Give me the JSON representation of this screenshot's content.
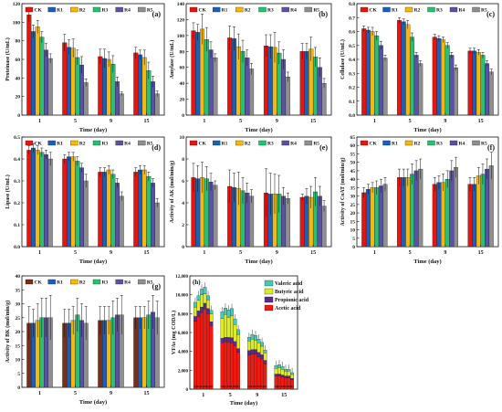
{
  "colors": {
    "CK": "#e8150f",
    "R1": "#1c5fb8",
    "R2": "#f5b811",
    "R3": "#2bbf74",
    "R4": "#5a52a6",
    "R5": "#8f8f8f",
    "CK_g": "#7a2f18",
    "acetic": "#8a2a1c",
    "propionic": "#5a2b8c",
    "butyric": "#dcea2a",
    "valeric": "#47c8b8",
    "stackbar": "#ee1b12"
  },
  "legend_labels": [
    "CK",
    "R1",
    "R2",
    "R3",
    "R4",
    "R5"
  ],
  "chart_data": [
    {
      "id": "a",
      "type": "bar",
      "panel_label": "(a)",
      "ylabel": "Proteinase (U/mL)",
      "xlabel": "Time (day)",
      "categories": [
        "1",
        "5",
        "9",
        "15"
      ],
      "ylim": [
        0,
        120
      ],
      "yticks": [
        0,
        20,
        40,
        60,
        80,
        100,
        120
      ],
      "series": [
        {
          "name": "CK",
          "values": [
            108,
            78,
            63,
            67
          ],
          "err": [
            8,
            9,
            8,
            6
          ]
        },
        {
          "name": "R1",
          "values": [
            90,
            73,
            61,
            65
          ],
          "err": [
            7,
            8,
            10,
            5
          ]
        },
        {
          "name": "R2",
          "values": [
            95,
            72,
            60,
            62
          ],
          "err": [
            7,
            10,
            8,
            8
          ]
        },
        {
          "name": "R3",
          "values": [
            84,
            62,
            55,
            48
          ],
          "err": [
            6,
            8,
            9,
            9
          ]
        },
        {
          "name": "R4",
          "values": [
            70,
            54,
            36,
            36
          ],
          "err": [
            7,
            9,
            5,
            6
          ]
        },
        {
          "name": "R5",
          "values": [
            61,
            35,
            23,
            23
          ],
          "err": [
            5,
            4,
            2,
            3
          ]
        }
      ]
    },
    {
      "id": "b",
      "type": "bar",
      "panel_label": "(b)",
      "ylabel": "Amylase (U/mL)",
      "xlabel": "Time (day)",
      "categories": [
        "1",
        "5",
        "9",
        "15"
      ],
      "ylim": [
        0,
        140
      ],
      "yticks": [
        0,
        20,
        40,
        60,
        80,
        100,
        120,
        140
      ],
      "series": [
        {
          "name": "CK",
          "values": [
            106,
            97,
            87,
            80
          ],
          "err": [
            10,
            15,
            14,
            10
          ]
        },
        {
          "name": "R1",
          "values": [
            104,
            96,
            86,
            80
          ],
          "err": [
            10,
            15,
            15,
            10
          ]
        },
        {
          "name": "R2",
          "values": [
            108,
            86,
            85,
            83
          ],
          "err": [
            19,
            16,
            19,
            15
          ]
        },
        {
          "name": "R3",
          "values": [
            95,
            80,
            78,
            73
          ],
          "err": [
            15,
            14,
            14,
            12
          ]
        },
        {
          "name": "R4",
          "values": [
            82,
            72,
            70,
            60
          ],
          "err": [
            10,
            10,
            12,
            12
          ]
        },
        {
          "name": "R5",
          "values": [
            72,
            58,
            48,
            40
          ],
          "err": [
            5,
            7,
            6,
            6
          ]
        }
      ]
    },
    {
      "id": "c",
      "type": "bar",
      "panel_label": "(c)",
      "ylabel": "Cellulase (U/mL)",
      "xlabel": "Time (day)",
      "categories": [
        "1",
        "5",
        "9",
        "15"
      ],
      "ylim": [
        0,
        0.8
      ],
      "yticks": [
        0.0,
        0.1,
        0.2,
        0.3,
        0.4,
        0.5,
        0.6,
        0.7,
        0.8
      ],
      "series": [
        {
          "name": "CK",
          "values": [
            0.62,
            0.68,
            0.56,
            0.46
          ],
          "err": [
            0.02,
            0.02,
            0.02,
            0.02
          ]
        },
        {
          "name": "R1",
          "values": [
            0.61,
            0.67,
            0.55,
            0.46
          ],
          "err": [
            0.02,
            0.02,
            0.02,
            0.02
          ]
        },
        {
          "name": "R2",
          "values": [
            0.6,
            0.65,
            0.54,
            0.45
          ],
          "err": [
            0.03,
            0.03,
            0.02,
            0.02
          ]
        },
        {
          "name": "R3",
          "values": [
            0.57,
            0.56,
            0.5,
            0.43
          ],
          "err": [
            0.03,
            0.03,
            0.02,
            0.02
          ]
        },
        {
          "name": "R4",
          "values": [
            0.5,
            0.43,
            0.43,
            0.37
          ],
          "err": [
            0.03,
            0.02,
            0.02,
            0.02
          ]
        },
        {
          "name": "R5",
          "values": [
            0.41,
            0.37,
            0.34,
            0.31
          ],
          "err": [
            0.02,
            0.02,
            0.02,
            0.02
          ]
        }
      ]
    },
    {
      "id": "d",
      "type": "bar",
      "panel_label": "(d)",
      "ylabel": "Lipase (U/mL)",
      "xlabel": "Time (day)",
      "categories": [
        "1",
        "5",
        "9",
        "15"
      ],
      "ylim": [
        0,
        0.5
      ],
      "yticks": [
        0.0,
        0.1,
        0.2,
        0.3,
        0.4,
        0.5
      ],
      "series": [
        {
          "name": "CK",
          "values": [
            0.44,
            0.4,
            0.34,
            0.34
          ],
          "err": [
            0.02,
            0.02,
            0.02,
            0.02
          ]
        },
        {
          "name": "R1",
          "values": [
            0.45,
            0.41,
            0.34,
            0.35
          ],
          "err": [
            0.02,
            0.02,
            0.02,
            0.02
          ]
        },
        {
          "name": "R2",
          "values": [
            0.44,
            0.41,
            0.35,
            0.35
          ],
          "err": [
            0.02,
            0.02,
            0.02,
            0.02
          ]
        },
        {
          "name": "R3",
          "values": [
            0.43,
            0.39,
            0.33,
            0.32
          ],
          "err": [
            0.02,
            0.02,
            0.02,
            0.02
          ]
        },
        {
          "name": "R4",
          "values": [
            0.42,
            0.36,
            0.29,
            0.29
          ],
          "err": [
            0.02,
            0.02,
            0.02,
            0.02
          ]
        },
        {
          "name": "R5",
          "values": [
            0.4,
            0.3,
            0.23,
            0.2
          ],
          "err": [
            0.03,
            0.03,
            0.02,
            0.02
          ]
        }
      ]
    },
    {
      "id": "e",
      "type": "bar",
      "panel_label": "(e)",
      "ylabel": "Activity of AK (mol/min/g)",
      "xlabel": "Time (day)",
      "categories": [
        "1",
        "5",
        "9",
        "15"
      ],
      "ylim": [
        0,
        10
      ],
      "yticks": [
        0,
        2,
        4,
        6,
        8,
        10
      ],
      "series": [
        {
          "name": "CK",
          "values": [
            6.3,
            5.5,
            4.9,
            4.5
          ],
          "err": [
            1.3,
            1.5,
            2.2,
            0.3
          ]
        },
        {
          "name": "R1",
          "values": [
            6.2,
            5.4,
            4.8,
            4.6
          ],
          "err": [
            1.2,
            1.3,
            1.9,
            0.7
          ]
        },
        {
          "name": "R2",
          "values": [
            6.3,
            5.3,
            4.8,
            4.5
          ],
          "err": [
            1.4,
            1.5,
            1.8,
            1.0
          ]
        },
        {
          "name": "R3",
          "values": [
            6.2,
            5.1,
            4.8,
            5.0
          ],
          "err": [
            1.1,
            1.2,
            1.7,
            1.3
          ]
        },
        {
          "name": "R4",
          "values": [
            5.9,
            4.9,
            4.6,
            4.6
          ],
          "err": [
            0.8,
            0.9,
            0.8,
            0.9
          ]
        },
        {
          "name": "R5",
          "values": [
            5.6,
            4.6,
            4.4,
            3.7
          ],
          "err": [
            0.4,
            0.6,
            0.5,
            0.5
          ]
        }
      ]
    },
    {
      "id": "f",
      "type": "bar",
      "panel_label": "(f)",
      "ylabel": "Activity of CoAT (mol/min/g)",
      "xlabel": "Time (day)",
      "categories": [
        "1",
        "5",
        "9",
        "15"
      ],
      "ylim": [
        0,
        65
      ],
      "yticks": [
        0,
        5,
        10,
        15,
        20,
        25,
        30,
        35,
        40,
        45,
        50,
        55,
        60,
        65
      ],
      "series": [
        {
          "name": "CK",
          "values": [
            32,
            41,
            37,
            37
          ],
          "err": [
            3,
            5,
            4,
            4
          ]
        },
        {
          "name": "R1",
          "values": [
            34,
            41,
            38,
            37
          ],
          "err": [
            3,
            5,
            4,
            4
          ]
        },
        {
          "name": "R2",
          "values": [
            35,
            41,
            38,
            42
          ],
          "err": [
            3,
            5,
            5,
            5
          ]
        },
        {
          "name": "R3",
          "values": [
            35,
            43,
            40,
            43
          ],
          "err": [
            4,
            6,
            5,
            6
          ]
        },
        {
          "name": "R4",
          "values": [
            36,
            45,
            45,
            46
          ],
          "err": [
            4,
            6,
            6,
            6
          ]
        },
        {
          "name": "R5",
          "values": [
            37,
            46,
            47,
            48
          ],
          "err": [
            4,
            6,
            6,
            8
          ]
        }
      ]
    },
    {
      "id": "g",
      "type": "bar",
      "panel_label": "(g)",
      "ylabel": "Activity of BK (mol/min/g)",
      "xlabel": "Time (day)",
      "categories": [
        "1",
        "5",
        "9",
        "15"
      ],
      "ylim": [
        0,
        40
      ],
      "yticks": [
        0,
        5,
        10,
        15,
        20,
        25,
        30,
        35,
        40
      ],
      "series": [
        {
          "name": "CK",
          "values": [
            23,
            23,
            24,
            25
          ],
          "err": [
            6,
            5,
            5,
            4
          ]
        },
        {
          "name": "R1",
          "values": [
            23,
            23,
            24,
            25
          ],
          "err": [
            5,
            5,
            5,
            4
          ]
        },
        {
          "name": "R2",
          "values": [
            24,
            24,
            24,
            25
          ],
          "err": [
            6,
            5,
            5,
            4
          ]
        },
        {
          "name": "R3",
          "values": [
            25,
            26,
            25,
            26
          ],
          "err": [
            7,
            6,
            6,
            5
          ]
        },
        {
          "name": "R4",
          "values": [
            25,
            24,
            26,
            27
          ],
          "err": [
            7,
            6,
            6,
            6
          ]
        },
        {
          "name": "R5",
          "values": [
            25,
            23,
            26,
            25
          ],
          "err": [
            8,
            6,
            7,
            6
          ]
        }
      ]
    },
    {
      "id": "h",
      "type": "bar",
      "panel_label": "(h)",
      "ylabel": "VFAs (mg COD/L)",
      "xlabel": "Time (day)",
      "categories": [
        "1",
        "5",
        "9",
        "15"
      ],
      "bar_labels": [
        "CK",
        "R1",
        "R2",
        "R3",
        "R4",
        "R5"
      ],
      "ylim": [
        0,
        12000
      ],
      "yticks": [
        0,
        2000,
        4000,
        6000,
        8000,
        10000,
        12000
      ],
      "stack_labels": [
        "Valeric acid",
        "Butyric acid",
        "Propionic acid",
        "Acetic acid"
      ],
      "series_stacked": [
        {
          "name": "Acetic acid",
          "values": [
            [
              7200,
              7700,
              8100,
              8500,
              8000,
              6700
            ],
            [
              4900,
              5000,
              5000,
              4900,
              4600,
              3900
            ],
            [
              3600,
              3700,
              3700,
              3400,
              3200,
              2700
            ],
            [
              1400,
              1400,
              1300,
              1200,
              1200,
              1000
            ]
          ]
        },
        {
          "name": "Propionic acid",
          "values": [
            [
              500,
              600,
              600,
              600,
              550,
              450
            ],
            [
              500,
              500,
              500,
              550,
              450,
              400
            ],
            [
              500,
              500,
              500,
              500,
              450,
              350
            ],
            [
              200,
              200,
              200,
              200,
              200,
              150
            ]
          ]
        },
        {
          "name": "Butyric acid",
          "values": [
            [
              1000,
              1100,
              1300,
              1000,
              900,
              800
            ],
            [
              2100,
              2400,
              2100,
              2300,
              1800,
              1500
            ],
            [
              1000,
              1100,
              1000,
              1000,
              900,
              800
            ],
            [
              600,
              700,
              600,
              500,
              500,
              400
            ]
          ]
        },
        {
          "name": "Valeric acid",
          "values": [
            [
              500,
              500,
              600,
              700,
              450,
              400
            ],
            [
              700,
              700,
              800,
              800,
              600,
              500
            ],
            [
              400,
              500,
              500,
              400,
              400,
              300
            ],
            [
              300,
              300,
              300,
              200,
              200,
              200
            ]
          ]
        }
      ]
    }
  ]
}
